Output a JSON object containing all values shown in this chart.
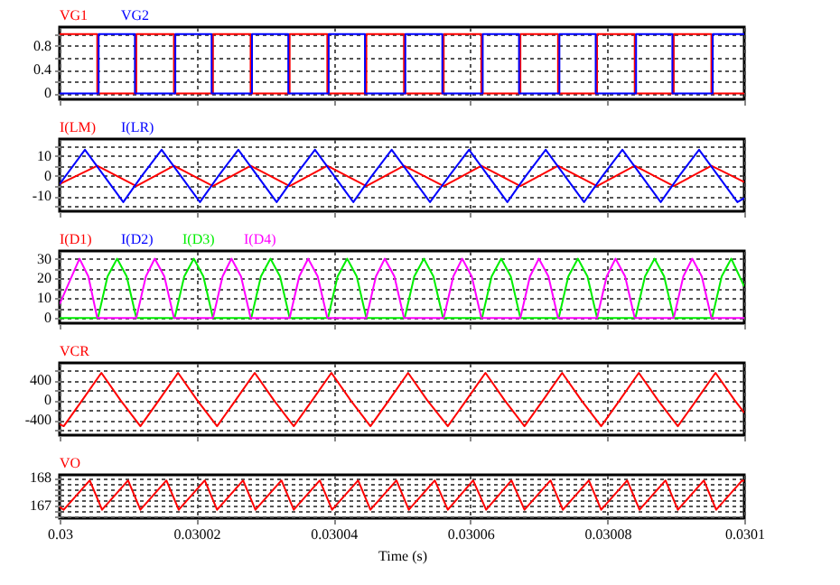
{
  "chart_data": [
    {
      "type": "step",
      "xlim": [
        0.03,
        0.0301
      ],
      "xticks": [
        0.03,
        0.03002,
        0.03004,
        0.03006,
        0.03008,
        0.0301
      ],
      "ylim": [
        -0.1,
        1.12
      ],
      "yticks": [
        0,
        {
          "value": 0.2,
          "label": null
        },
        0.4,
        {
          "value": 0.6,
          "label": null
        },
        0.8,
        {
          "value": 1,
          "label": null
        }
      ],
      "grid": true,
      "tick_labels": "y",
      "series": [
        {
          "name": "VG1",
          "color": "#ff0000",
          "x": [
            0.03,
            0.0300055,
            0.0300112,
            0.0300167,
            0.0300224,
            0.0300279,
            0.0300336,
            0.0300391,
            0.0300448,
            0.0300503,
            0.0300561,
            0.0300616,
            0.0300673,
            0.0300728,
            0.0300785,
            0.030084,
            0.0300897,
            0.0300952,
            0.0301
          ],
          "values": [
            1,
            0,
            1,
            0,
            1,
            0,
            1,
            0,
            1,
            0,
            1,
            0,
            1,
            0,
            1,
            0,
            1,
            0,
            0
          ]
        },
        {
          "name": "VG2",
          "color": "#0000ff",
          "x": [
            0.03,
            0.0300057,
            0.030011,
            0.0300169,
            0.0300222,
            0.0300281,
            0.0300334,
            0.0300393,
            0.0300446,
            0.0300505,
            0.0300559,
            0.0300618,
            0.0300671,
            0.030073,
            0.0300783,
            0.0300842,
            0.0300895,
            0.0300954,
            0.0301
          ],
          "values": [
            0,
            1,
            0,
            1,
            0,
            1,
            0,
            1,
            0,
            1,
            0,
            1,
            0,
            1,
            0,
            1,
            0,
            1,
            1
          ]
        }
      ]
    },
    {
      "type": "line",
      "xlim": [
        0.03,
        0.0301
      ],
      "xticks": [
        0.03,
        0.03002,
        0.03004,
        0.03006,
        0.03008,
        0.0301
      ],
      "ylim": [
        -17.5,
        18.3
      ],
      "yticks": [
        {
          "value": -15,
          "label": null
        },
        -10,
        {
          "value": -5,
          "label": null
        },
        0,
        {
          "value": 5,
          "label": null
        },
        10,
        {
          "value": 15,
          "label": null
        }
      ],
      "grid": true,
      "tick_labels": "y",
      "series": [
        {
          "name": "I(LM)",
          "color": "#ff0000",
          "x": [
            0.03,
            0.0300055,
            0.0300112,
            0.0300167,
            0.0300224,
            0.0300279,
            0.0300336,
            0.0300391,
            0.0300448,
            0.0300503,
            0.0300561,
            0.0300616,
            0.0300673,
            0.0300728,
            0.0300785,
            0.030084,
            0.0300897,
            0.0300952,
            0.0301
          ],
          "values": [
            -4,
            5,
            -5,
            5,
            -5,
            5,
            -5,
            5,
            -5,
            5,
            -5,
            5,
            -5,
            5,
            -5,
            5,
            -5,
            5,
            -3
          ]
        },
        {
          "name": "I(LR)",
          "color": "#0000ff",
          "x": [
            0.03,
            0.0300037,
            0.0300065,
            0.0300093,
            0.030012,
            0.0300149,
            0.0300177,
            0.0300205,
            0.0300232,
            0.0300261,
            0.0300289,
            0.0300317,
            0.0300344,
            0.0300373,
            0.0300401,
            0.0300429,
            0.0300456,
            0.0300485,
            0.0300513,
            0.0300541,
            0.0300569,
            0.0300598,
            0.0300626,
            0.0300654,
            0.0300681,
            0.030071,
            0.0300738,
            0.0300766,
            0.0300793,
            0.0300822,
            0.030085,
            0.0300878,
            0.0300905,
            0.0300934,
            0.0300962,
            0.030099,
            0.0301
          ],
          "values": [
            -4,
            13,
            0,
            -13,
            0,
            13,
            0,
            -13,
            0,
            13,
            0,
            -13,
            0,
            13,
            0,
            -13,
            0,
            13,
            0,
            -13,
            0,
            13,
            0,
            -13,
            0,
            13,
            0,
            -13,
            0,
            13,
            0,
            -13,
            0,
            13,
            0,
            -13,
            -11
          ]
        }
      ]
    },
    {
      "type": "line",
      "xlim": [
        0.03,
        0.0301
      ],
      "xticks": [
        0.03,
        0.03002,
        0.03004,
        0.03006,
        0.03008,
        0.0301
      ],
      "ylim": [
        -2.6,
        33.9
      ],
      "yticks": [
        0,
        {
          "value": 5,
          "label": null
        },
        10,
        {
          "value": 15,
          "label": null
        },
        20,
        {
          "value": 25,
          "label": null
        },
        30
      ],
      "grid": true,
      "tick_labels": "y",
      "series": [
        {
          "name": "I(D1)",
          "color": "#ff0000"
        },
        {
          "name": "I(D2)",
          "color": "#0000ff"
        },
        {
          "name": "I(D3)",
          "color": "#00ee00",
          "x": [
            0.03,
            0.0300056,
            0.030007,
            0.0300084,
            0.0300098,
            0.0300112,
            0.0300168,
            0.0300182,
            0.0300196,
            0.030021,
            0.0300224,
            0.030028,
            0.0300294,
            0.0300308,
            0.0300322,
            0.0300336,
            0.0300392,
            0.0300406,
            0.030042,
            0.0300434,
            0.0300448,
            0.0300504,
            0.0300518,
            0.0300532,
            0.0300546,
            0.030056,
            0.0300617,
            0.0300631,
            0.0300645,
            0.0300659,
            0.0300673,
            0.0300729,
            0.0300743,
            0.0300757,
            0.0300771,
            0.0300785,
            0.0300841,
            0.0300855,
            0.0300869,
            0.0300883,
            0.0300897,
            0.0300953,
            0.0300967,
            0.0300981,
            0.0301
          ],
          "values": [
            0,
            0,
            21,
            30,
            21,
            0,
            0,
            21,
            30,
            21,
            0,
            0,
            21,
            30,
            21,
            0,
            0,
            21,
            30,
            21,
            0,
            0,
            21,
            30,
            21,
            0,
            0,
            21,
            30,
            21,
            0,
            0,
            21,
            30,
            21,
            0,
            0,
            21,
            30,
            21,
            0,
            0,
            21,
            30,
            16
          ]
        },
        {
          "name": "I(D4)",
          "color": "#ff00ff",
          "x": [
            0.03,
            0.0300029,
            0.0300042,
            0.0300055,
            0.0300112,
            0.0300126,
            0.0300139,
            0.0300153,
            0.0300167,
            0.0300224,
            0.0300238,
            0.0300251,
            0.0300265,
            0.0300279,
            0.0300336,
            0.030035,
            0.0300363,
            0.0300377,
            0.0300391,
            0.0300448,
            0.0300462,
            0.0300475,
            0.0300489,
            0.0300503,
            0.0300561,
            0.0300575,
            0.0300588,
            0.0300602,
            0.0300616,
            0.0300673,
            0.0300687,
            0.03007,
            0.0300714,
            0.0300728,
            0.0300785,
            0.0300799,
            0.0300812,
            0.0300826,
            0.030084,
            0.0300897,
            0.0300911,
            0.0300924,
            0.0300938,
            0.0300952,
            0.0301
          ],
          "values": [
            7,
            30,
            21,
            0,
            0,
            21,
            30,
            21,
            0,
            0,
            21,
            30,
            21,
            0,
            0,
            21,
            30,
            21,
            0,
            0,
            21,
            30,
            21,
            0,
            0,
            21,
            30,
            21,
            0,
            0,
            21,
            30,
            21,
            0,
            0,
            21,
            30,
            21,
            0,
            0,
            21,
            30,
            21,
            0,
            0
          ]
        }
      ]
    },
    {
      "type": "line",
      "xlim": [
        0.03,
        0.0301
      ],
      "xticks": [
        0.03,
        0.03002,
        0.03004,
        0.03006,
        0.03008,
        0.0301
      ],
      "ylim": [
        -700,
        750
      ],
      "yticks": [
        {
          "value": -600,
          "label": null
        },
        -400,
        {
          "value": -200,
          "label": null
        },
        0,
        {
          "value": 200,
          "label": null
        },
        400,
        {
          "value": 600,
          "label": null
        }
      ],
      "grid": true,
      "tick_labels": "y",
      "series": [
        {
          "name": "VCR",
          "color": "#ff0000",
          "x": [
            0.03,
            0.0300006,
            0.0300033,
            0.0300061,
            0.0300089,
            0.0300118,
            0.0300145,
            0.0300173,
            0.0300201,
            0.030023,
            0.0300257,
            0.0300285,
            0.0300313,
            0.0300342,
            0.0300369,
            0.0300397,
            0.0300425,
            0.0300454,
            0.0300481,
            0.0300509,
            0.0300537,
            0.0300567,
            0.0300594,
            0.0300622,
            0.030065,
            0.0300679,
            0.0300706,
            0.0300734,
            0.0300762,
            0.0300791,
            0.0300818,
            0.0300846,
            0.0300874,
            0.0300903,
            0.030093,
            0.0300958,
            0.0300986,
            0.0301
          ],
          "values": [
            -480,
            -520,
            0,
            550,
            0,
            -520,
            0,
            550,
            0,
            -520,
            0,
            550,
            0,
            -520,
            0,
            550,
            0,
            -520,
            0,
            550,
            0,
            -520,
            0,
            550,
            0,
            -520,
            0,
            550,
            0,
            -520,
            0,
            550,
            0,
            -520,
            0,
            550,
            0,
            -250
          ]
        }
      ]
    },
    {
      "type": "line",
      "xlim": [
        0.03,
        0.0301
      ],
      "xticks": [
        0.03,
        0.03002,
        0.03004,
        0.03006,
        0.03008,
        0.0301
      ],
      "xlabel": "Time (s)",
      "ylim": [
        166.55,
        168.1
      ],
      "yticks": [
        {
          "value": 166.6,
          "label": null
        },
        {
          "value": 166.8,
          "label": null
        },
        167,
        {
          "value": 167.2,
          "label": null
        },
        {
          "value": 167.4,
          "label": null
        },
        {
          "value": 167.6,
          "label": null
        },
        {
          "value": 167.8,
          "label": null
        },
        168
      ],
      "grid": true,
      "series": [
        {
          "name": "VO",
          "color": "#ff0000",
          "x": [
            0.03,
            0.0300006,
            0.0300044,
            0.0300062,
            0.03001,
            0.0300118,
            0.0300156,
            0.0300174,
            0.0300212,
            0.030023,
            0.0300268,
            0.0300286,
            0.0300324,
            0.0300342,
            0.030038,
            0.0300398,
            0.0300436,
            0.0300454,
            0.0300492,
            0.030051,
            0.0300548,
            0.0300567,
            0.0300604,
            0.0300623,
            0.030066,
            0.0300679,
            0.0300717,
            0.0300735,
            0.0300773,
            0.0300791,
            0.0300829,
            0.0300847,
            0.0300885,
            0.0300903,
            0.0300941,
            0.0300959,
            0.0300997,
            0.0301
          ],
          "values": [
            166.95,
            166.85,
            167.9,
            166.85,
            167.9,
            166.85,
            167.9,
            166.85,
            167.9,
            166.85,
            167.9,
            166.85,
            167.9,
            166.85,
            167.9,
            166.85,
            167.9,
            166.85,
            167.9,
            166.85,
            167.9,
            166.85,
            167.9,
            166.85,
            167.9,
            166.85,
            167.9,
            166.85,
            167.9,
            166.85,
            167.9,
            166.85,
            167.9,
            166.85,
            167.9,
            166.85,
            167.9,
            167.88
          ]
        }
      ]
    }
  ]
}
